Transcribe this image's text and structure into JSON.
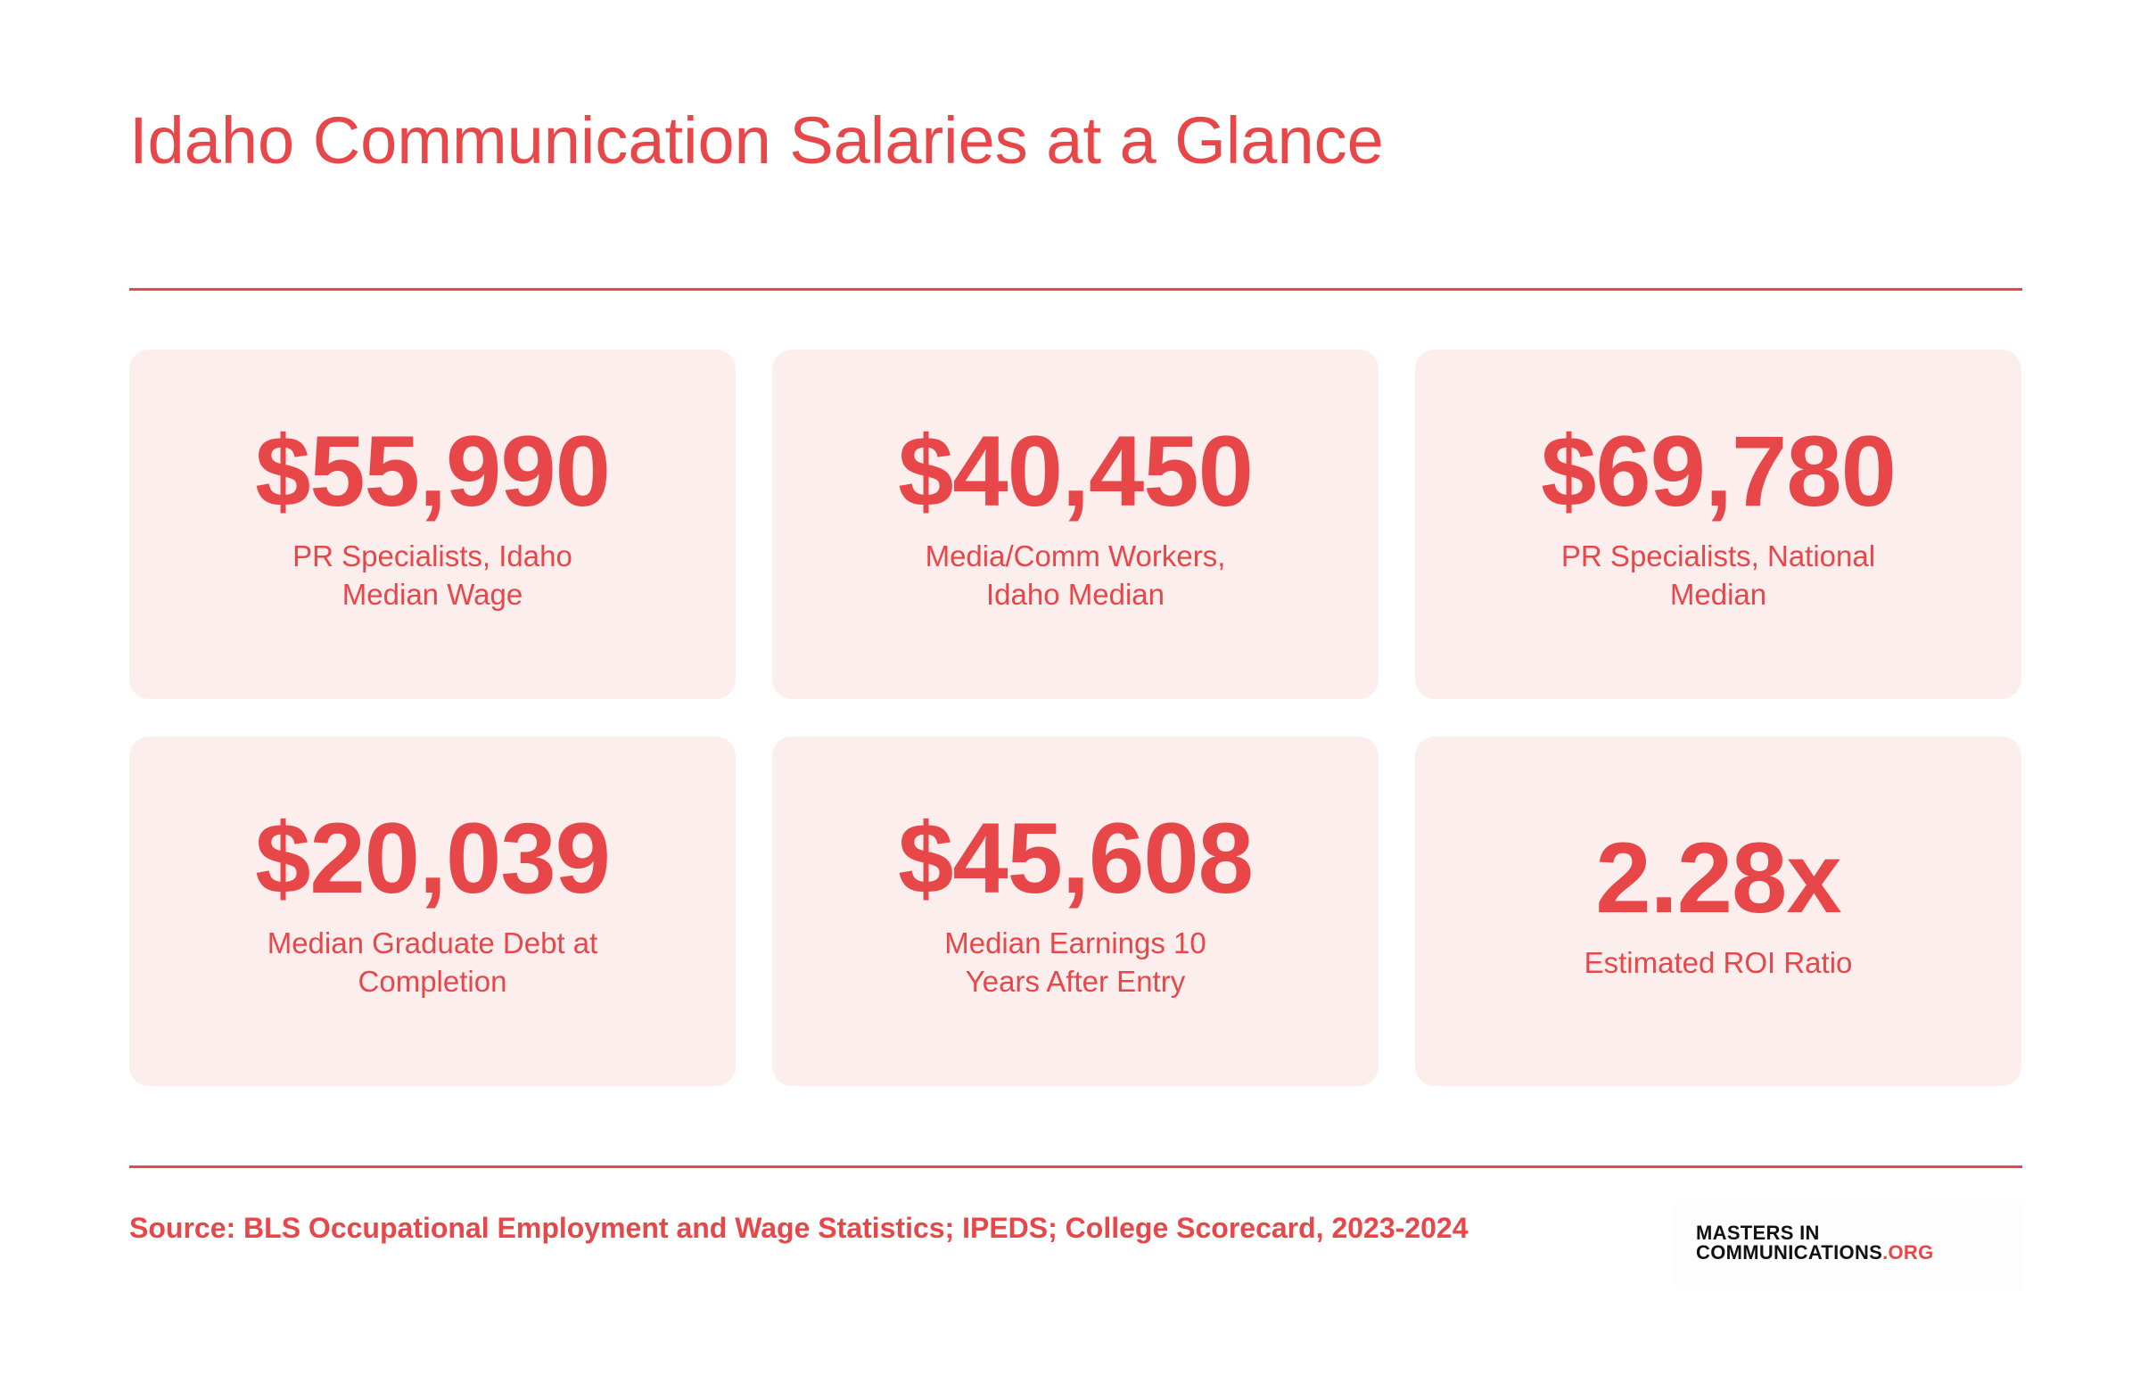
{
  "header": {
    "title": "Idaho Communication Salaries at a Glance"
  },
  "stats": [
    {
      "value": "$55,990",
      "label": "PR Specialists, Idaho Median Wage"
    },
    {
      "value": "$40,450",
      "label": "Media/Comm Workers, Idaho Median"
    },
    {
      "value": "$69,780",
      "label": "PR Specialists, National Median"
    },
    {
      "value": "$20,039",
      "label": "Median Graduate Debt at Completion"
    },
    {
      "value": "$45,608",
      "label": "Median Earnings 10 Years After Entry"
    },
    {
      "value": "2.28x",
      "label": "Estimated ROI Ratio"
    }
  ],
  "footer": {
    "source": "Source: BLS Occupational Employment and Wage Statistics; IPEDS; College Scorecard, 2023-2024",
    "logo_line1": "MASTERS IN",
    "logo_line2": "COMMUNICATIONS",
    "logo_suffix": ".ORG"
  },
  "colors": {
    "accent": "#e8474a",
    "card_background": "#fdeeee",
    "logo_text": "#111111"
  }
}
